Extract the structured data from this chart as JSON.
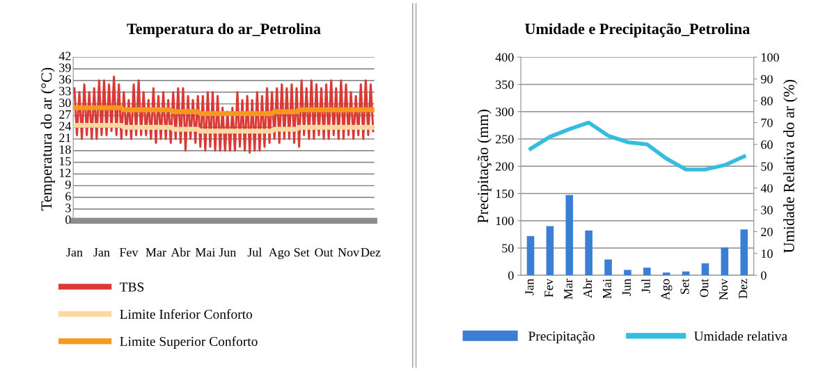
{
  "chart_data": [
    {
      "type": "line",
      "title": "Temperatura do ar_Petrolina",
      "ylabel": "Temperatura do ar (°C)",
      "categories": [
        "Jan",
        null,
        null,
        null,
        null,
        null,
        null,
        null,
        null,
        null,
        null,
        "Jan",
        null,
        null,
        null,
        null,
        null,
        null,
        null,
        null,
        null,
        null,
        "Fev",
        null,
        null,
        null,
        null,
        null,
        null,
        null,
        null,
        null,
        null,
        "Mar",
        null,
        null,
        null,
        null,
        null,
        null,
        null,
        null,
        null,
        "Abr",
        null,
        null,
        null,
        null,
        null,
        null,
        null,
        null,
        null,
        "Mai",
        null,
        null,
        null,
        null,
        null,
        null,
        null,
        null,
        "Jun",
        null,
        null,
        null,
        null,
        null,
        null,
        null,
        null,
        null,
        null,
        "Jul",
        null,
        null,
        null,
        null,
        null,
        null,
        null,
        null,
        null,
        "Ago",
        null,
        null,
        null,
        null,
        null,
        null,
        null,
        null,
        "Set",
        null,
        null,
        null,
        null,
        null,
        null,
        null,
        null,
        "Out",
        null,
        null,
        null,
        null,
        null,
        null,
        null,
        null,
        null,
        "Nov",
        null,
        null,
        null,
        null,
        null,
        null,
        null,
        null,
        "Dez",
        null
      ],
      "ylim": [
        0,
        42
      ],
      "yticks": [
        0,
        3,
        6,
        9,
        12,
        15,
        18,
        21,
        24,
        27,
        30,
        33,
        36,
        39,
        42
      ],
      "grid": "y",
      "legend": "bottom",
      "series": [
        {
          "name": "TBS",
          "color": "#d93a35",
          "values": [
            34,
            22,
            33,
            21,
            35,
            22,
            33,
            21,
            34,
            21,
            36,
            22,
            36,
            22,
            35,
            23,
            37,
            22,
            35,
            21,
            33,
            22,
            31,
            21,
            35,
            22,
            36,
            22,
            33,
            22,
            31,
            21,
            34,
            20,
            32,
            21,
            33,
            21,
            31,
            20,
            33,
            21,
            34,
            20,
            34,
            18,
            32,
            21,
            31,
            20,
            32,
            19,
            32,
            18,
            33,
            19,
            33,
            18,
            32,
            18,
            29,
            18,
            28,
            18,
            29,
            18,
            33,
            19,
            31,
            18,
            32,
            17.5,
            31,
            18,
            33,
            18,
            32,
            19,
            34,
            20,
            33,
            21,
            34,
            20,
            35,
            21,
            34,
            21,
            35,
            20,
            34,
            19,
            36,
            22,
            34,
            21,
            36,
            21,
            35,
            22,
            34,
            21,
            35,
            21,
            36,
            22,
            34,
            21,
            36,
            21,
            35,
            22,
            33,
            21,
            32,
            22,
            35,
            21,
            36,
            22,
            35,
            23
          ]
        },
        {
          "name": "Limite Inferior Conforto",
          "color": "#fcd9a0",
          "values": [
            24.5,
            24.5,
            24.5,
            24.5,
            24.5,
            24.5,
            24.5,
            24.5,
            24.5,
            24.5,
            24.5,
            24.5,
            24.5,
            24.5,
            24.5,
            24.5,
            24.5,
            24.5,
            24.5,
            24.5,
            24,
            24,
            24,
            24,
            24,
            24,
            24,
            24,
            24,
            24,
            24,
            24,
            24,
            24,
            24,
            24,
            24,
            24,
            24,
            24,
            23.5,
            23.5,
            23.5,
            23.5,
            23.5,
            23.5,
            23.5,
            23.5,
            23.5,
            23.5,
            23.5,
            23,
            23,
            23,
            23,
            23,
            23,
            23,
            23,
            23,
            23,
            23,
            23,
            23,
            23,
            23,
            23,
            23,
            23,
            23,
            23,
            23,
            23,
            23,
            23,
            23,
            23,
            23,
            23,
            23,
            23,
            23.5,
            23.5,
            23.5,
            23.5,
            23.5,
            23.5,
            23.5,
            23.5,
            23.5,
            23.5,
            24,
            24,
            24,
            24,
            24,
            24,
            24,
            24,
            24,
            24,
            24,
            24,
            24,
            24,
            24,
            24,
            24,
            24,
            24,
            24,
            24,
            24,
            24,
            24,
            24,
            24,
            24,
            24,
            24,
            24,
            24
          ]
        },
        {
          "name": "Limite Superior Conforto",
          "color": "#f8981f",
          "values": [
            29,
            29,
            29,
            29,
            29,
            29,
            29,
            29,
            29,
            29,
            29,
            29,
            29,
            29,
            29,
            29,
            29,
            29,
            29,
            29,
            28.5,
            28.5,
            28.5,
            28.5,
            28.5,
            28.5,
            28.5,
            28.5,
            28.5,
            28.5,
            28.5,
            28.5,
            28.5,
            28.5,
            28.5,
            28.5,
            28.5,
            28.5,
            28.5,
            28.5,
            28,
            28,
            28,
            28,
            28,
            28,
            28,
            28,
            28,
            28,
            28,
            27.5,
            27.5,
            27.5,
            27.5,
            27.5,
            27.5,
            27.5,
            27.5,
            27.5,
            27.5,
            27.5,
            27.5,
            27.5,
            27.5,
            27.5,
            27.5,
            27.5,
            27.5,
            27.5,
            27.5,
            27.5,
            27.5,
            27.5,
            27.5,
            27.5,
            27.5,
            27.5,
            27.5,
            27.5,
            27.5,
            28,
            28,
            28,
            28,
            28,
            28,
            28,
            28,
            28,
            28,
            28.5,
            28.5,
            28.5,
            28.5,
            28.5,
            28.5,
            28.5,
            28.5,
            28.5,
            28.5,
            28.5,
            28.5,
            28.5,
            28.5,
            28.5,
            28.5,
            28.5,
            28.5,
            28.5,
            28.5,
            28.5,
            28.5,
            28.5,
            28.5,
            28.5,
            28.5,
            28.5,
            28.5,
            28.5,
            28.5,
            28.5
          ]
        }
      ]
    },
    {
      "type": "bar",
      "title": "Umidade e Precipitação_Petrolina",
      "ylabel": "Precipitação (mm)",
      "y2label": "Umidade Relativa do ar (%)",
      "categories": [
        "Jan",
        "Fev",
        "Mar",
        "Abr",
        "Mai",
        "Jun",
        "Jul",
        "Ago",
        "Set",
        "Out",
        "Nov",
        "Dez"
      ],
      "ylim": [
        0,
        400
      ],
      "yticks": [
        0,
        50,
        100,
        150,
        200,
        250,
        300,
        350,
        400
      ],
      "y2lim": [
        0,
        100
      ],
      "y2ticks": [
        0,
        10,
        20,
        30,
        40,
        50,
        60,
        70,
        80,
        90,
        100
      ],
      "grid": "y",
      "legend": "bottom",
      "series": [
        {
          "name": "Precipitação",
          "color": "#3a7fd5",
          "values": [
            72,
            90,
            147,
            82,
            29,
            10,
            14,
            5,
            7,
            22,
            51,
            84
          ]
        },
        {
          "name": "Umidade relativa",
          "color": "#35bde0",
          "type": "line",
          "axis": "y2",
          "values": [
            58,
            63.5,
            67,
            70,
            64,
            61,
            60,
            53.5,
            48.5,
            48.5,
            50.5,
            54.5
          ]
        }
      ]
    }
  ]
}
